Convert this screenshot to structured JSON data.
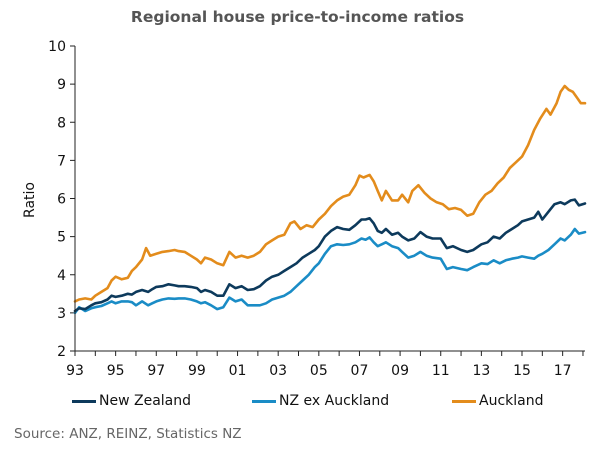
{
  "chart_data": {
    "type": "line",
    "title": "Regional house price-to-income ratios",
    "ylabel": "Ratio",
    "xlabel": "",
    "x_range": [
      1993,
      2018.1
    ],
    "ylim": [
      2,
      10
    ],
    "yticks": [
      2,
      3,
      4,
      5,
      6,
      7,
      8,
      9,
      10
    ],
    "xticks": [
      {
        "value": 1993,
        "label": "93"
      },
      {
        "value": 1995,
        "label": "95"
      },
      {
        "value": 1997,
        "label": "97"
      },
      {
        "value": 1999,
        "label": "99"
      },
      {
        "value": 2001,
        "label": "01"
      },
      {
        "value": 2003,
        "label": "03"
      },
      {
        "value": 2005,
        "label": "05"
      },
      {
        "value": 2007,
        "label": "07"
      },
      {
        "value": 2009,
        "label": "09"
      },
      {
        "value": 2011,
        "label": "11"
      },
      {
        "value": 2013,
        "label": "13"
      },
      {
        "value": 2015,
        "label": "15"
      },
      {
        "value": 2017,
        "label": "17"
      }
    ],
    "grid": false,
    "legend_position": "bottom",
    "series": [
      {
        "name": "New Zealand",
        "color": "#0d3a5c",
        "points": [
          [
            1993.0,
            3.05
          ],
          [
            1993.2,
            3.12
          ],
          [
            1993.5,
            3.1
          ],
          [
            1993.8,
            3.2
          ],
          [
            1994.0,
            3.25
          ],
          [
            1994.3,
            3.28
          ],
          [
            1994.6,
            3.35
          ],
          [
            1994.8,
            3.45
          ],
          [
            1995.0,
            3.42
          ],
          [
            1995.3,
            3.45
          ],
          [
            1995.6,
            3.5
          ],
          [
            1995.8,
            3.48
          ],
          [
            1996.0,
            3.55
          ],
          [
            1996.3,
            3.6
          ],
          [
            1996.6,
            3.55
          ],
          [
            1996.8,
            3.62
          ],
          [
            1997.0,
            3.68
          ],
          [
            1997.3,
            3.7
          ],
          [
            1997.6,
            3.75
          ],
          [
            1997.9,
            3.72
          ],
          [
            1998.1,
            3.7
          ],
          [
            1998.4,
            3.7
          ],
          [
            1998.7,
            3.68
          ],
          [
            1999.0,
            3.65
          ],
          [
            1999.2,
            3.55
          ],
          [
            1999.4,
            3.6
          ],
          [
            1999.7,
            3.55
          ],
          [
            2000.0,
            3.45
          ],
          [
            2000.3,
            3.45
          ],
          [
            2000.6,
            3.75
          ],
          [
            2000.9,
            3.65
          ],
          [
            2001.2,
            3.7
          ],
          [
            2001.5,
            3.6
          ],
          [
            2001.8,
            3.62
          ],
          [
            2002.1,
            3.7
          ],
          [
            2002.4,
            3.85
          ],
          [
            2002.7,
            3.95
          ],
          [
            2003.0,
            4.0
          ],
          [
            2003.3,
            4.1
          ],
          [
            2003.6,
            4.2
          ],
          [
            2003.9,
            4.3
          ],
          [
            2004.2,
            4.45
          ],
          [
            2004.5,
            4.55
          ],
          [
            2004.8,
            4.65
          ],
          [
            2005.0,
            4.75
          ],
          [
            2005.3,
            5.0
          ],
          [
            2005.6,
            5.15
          ],
          [
            2005.9,
            5.25
          ],
          [
            2006.2,
            5.2
          ],
          [
            2006.5,
            5.18
          ],
          [
            2006.8,
            5.3
          ],
          [
            2007.1,
            5.45
          ],
          [
            2007.3,
            5.45
          ],
          [
            2007.5,
            5.48
          ],
          [
            2007.7,
            5.35
          ],
          [
            2007.9,
            5.15
          ],
          [
            2008.1,
            5.1
          ],
          [
            2008.3,
            5.2
          ],
          [
            2008.6,
            5.05
          ],
          [
            2008.9,
            5.1
          ],
          [
            2009.1,
            5.0
          ],
          [
            2009.4,
            4.9
          ],
          [
            2009.7,
            4.95
          ],
          [
            2010.0,
            5.12
          ],
          [
            2010.3,
            5.0
          ],
          [
            2010.6,
            4.95
          ],
          [
            2011.0,
            4.95
          ],
          [
            2011.3,
            4.7
          ],
          [
            2011.6,
            4.75
          ],
          [
            2012.0,
            4.65
          ],
          [
            2012.3,
            4.6
          ],
          [
            2012.6,
            4.65
          ],
          [
            2013.0,
            4.8
          ],
          [
            2013.3,
            4.85
          ],
          [
            2013.6,
            5.0
          ],
          [
            2013.9,
            4.95
          ],
          [
            2014.2,
            5.1
          ],
          [
            2014.5,
            5.2
          ],
          [
            2014.8,
            5.3
          ],
          [
            2015.0,
            5.4
          ],
          [
            2015.3,
            5.45
          ],
          [
            2015.6,
            5.5
          ],
          [
            2015.8,
            5.65
          ],
          [
            2016.0,
            5.45
          ],
          [
            2016.3,
            5.65
          ],
          [
            2016.6,
            5.85
          ],
          [
            2016.9,
            5.9
          ],
          [
            2017.1,
            5.85
          ],
          [
            2017.4,
            5.95
          ],
          [
            2017.6,
            5.97
          ],
          [
            2017.8,
            5.82
          ],
          [
            2018.1,
            5.87
          ]
        ]
      },
      {
        "name": "NZ ex Auckland",
        "color": "#1a8cc6",
        "points": [
          [
            1993.0,
            3.0
          ],
          [
            1993.2,
            3.15
          ],
          [
            1993.5,
            3.05
          ],
          [
            1993.8,
            3.12
          ],
          [
            1994.0,
            3.15
          ],
          [
            1994.3,
            3.18
          ],
          [
            1994.6,
            3.25
          ],
          [
            1994.8,
            3.3
          ],
          [
            1995.0,
            3.25
          ],
          [
            1995.3,
            3.3
          ],
          [
            1995.6,
            3.3
          ],
          [
            1995.8,
            3.28
          ],
          [
            1996.0,
            3.2
          ],
          [
            1996.3,
            3.3
          ],
          [
            1996.6,
            3.2
          ],
          [
            1996.8,
            3.25
          ],
          [
            1997.0,
            3.3
          ],
          [
            1997.3,
            3.35
          ],
          [
            1997.6,
            3.38
          ],
          [
            1997.9,
            3.37
          ],
          [
            1998.1,
            3.38
          ],
          [
            1998.4,
            3.38
          ],
          [
            1998.7,
            3.35
          ],
          [
            1999.0,
            3.3
          ],
          [
            1999.2,
            3.25
          ],
          [
            1999.4,
            3.28
          ],
          [
            1999.7,
            3.2
          ],
          [
            2000.0,
            3.1
          ],
          [
            2000.3,
            3.15
          ],
          [
            2000.6,
            3.4
          ],
          [
            2000.9,
            3.3
          ],
          [
            2001.2,
            3.35
          ],
          [
            2001.5,
            3.2
          ],
          [
            2001.8,
            3.2
          ],
          [
            2002.1,
            3.2
          ],
          [
            2002.4,
            3.25
          ],
          [
            2002.7,
            3.35
          ],
          [
            2003.0,
            3.4
          ],
          [
            2003.3,
            3.45
          ],
          [
            2003.6,
            3.55
          ],
          [
            2003.9,
            3.7
          ],
          [
            2004.2,
            3.85
          ],
          [
            2004.5,
            4.0
          ],
          [
            2004.8,
            4.2
          ],
          [
            2005.0,
            4.3
          ],
          [
            2005.3,
            4.55
          ],
          [
            2005.6,
            4.75
          ],
          [
            2005.9,
            4.8
          ],
          [
            2006.2,
            4.78
          ],
          [
            2006.5,
            4.8
          ],
          [
            2006.8,
            4.85
          ],
          [
            2007.1,
            4.95
          ],
          [
            2007.3,
            4.92
          ],
          [
            2007.5,
            4.98
          ],
          [
            2007.7,
            4.85
          ],
          [
            2007.9,
            4.75
          ],
          [
            2008.1,
            4.8
          ],
          [
            2008.3,
            4.85
          ],
          [
            2008.6,
            4.75
          ],
          [
            2008.9,
            4.7
          ],
          [
            2009.1,
            4.6
          ],
          [
            2009.4,
            4.45
          ],
          [
            2009.7,
            4.5
          ],
          [
            2010.0,
            4.6
          ],
          [
            2010.3,
            4.5
          ],
          [
            2010.6,
            4.45
          ],
          [
            2011.0,
            4.42
          ],
          [
            2011.3,
            4.15
          ],
          [
            2011.6,
            4.2
          ],
          [
            2012.0,
            4.15
          ],
          [
            2012.3,
            4.12
          ],
          [
            2012.6,
            4.2
          ],
          [
            2013.0,
            4.3
          ],
          [
            2013.3,
            4.28
          ],
          [
            2013.6,
            4.38
          ],
          [
            2013.9,
            4.3
          ],
          [
            2014.2,
            4.38
          ],
          [
            2014.5,
            4.42
          ],
          [
            2014.8,
            4.45
          ],
          [
            2015.0,
            4.48
          ],
          [
            2015.3,
            4.45
          ],
          [
            2015.6,
            4.42
          ],
          [
            2015.8,
            4.5
          ],
          [
            2016.0,
            4.55
          ],
          [
            2016.3,
            4.65
          ],
          [
            2016.6,
            4.8
          ],
          [
            2016.9,
            4.95
          ],
          [
            2017.1,
            4.9
          ],
          [
            2017.4,
            5.05
          ],
          [
            2017.6,
            5.2
          ],
          [
            2017.8,
            5.08
          ],
          [
            2018.1,
            5.12
          ]
        ]
      },
      {
        "name": "Auckland",
        "color": "#e38c1c",
        "points": [
          [
            1993.0,
            3.3
          ],
          [
            1993.2,
            3.35
          ],
          [
            1993.5,
            3.38
          ],
          [
            1993.8,
            3.35
          ],
          [
            1994.0,
            3.45
          ],
          [
            1994.3,
            3.55
          ],
          [
            1994.6,
            3.65
          ],
          [
            1994.8,
            3.85
          ],
          [
            1995.0,
            3.95
          ],
          [
            1995.3,
            3.88
          ],
          [
            1995.6,
            3.92
          ],
          [
            1995.8,
            4.1
          ],
          [
            1996.0,
            4.2
          ],
          [
            1996.3,
            4.4
          ],
          [
            1996.5,
            4.7
          ],
          [
            1996.7,
            4.5
          ],
          [
            1997.0,
            4.55
          ],
          [
            1997.3,
            4.6
          ],
          [
            1997.6,
            4.62
          ],
          [
            1997.9,
            4.65
          ],
          [
            1998.1,
            4.62
          ],
          [
            1998.4,
            4.6
          ],
          [
            1998.7,
            4.5
          ],
          [
            1999.0,
            4.4
          ],
          [
            1999.2,
            4.3
          ],
          [
            1999.4,
            4.45
          ],
          [
            1999.7,
            4.4
          ],
          [
            2000.0,
            4.3
          ],
          [
            2000.3,
            4.25
          ],
          [
            2000.6,
            4.6
          ],
          [
            2000.9,
            4.45
          ],
          [
            2001.2,
            4.5
          ],
          [
            2001.5,
            4.45
          ],
          [
            2001.8,
            4.5
          ],
          [
            2002.1,
            4.6
          ],
          [
            2002.4,
            4.8
          ],
          [
            2002.7,
            4.9
          ],
          [
            2003.0,
            5.0
          ],
          [
            2003.3,
            5.05
          ],
          [
            2003.6,
            5.35
          ],
          [
            2003.8,
            5.4
          ],
          [
            2004.1,
            5.2
          ],
          [
            2004.4,
            5.3
          ],
          [
            2004.7,
            5.25
          ],
          [
            2005.0,
            5.45
          ],
          [
            2005.3,
            5.6
          ],
          [
            2005.6,
            5.8
          ],
          [
            2005.9,
            5.95
          ],
          [
            2006.2,
            6.05
          ],
          [
            2006.5,
            6.1
          ],
          [
            2006.8,
            6.35
          ],
          [
            2007.0,
            6.6
          ],
          [
            2007.2,
            6.55
          ],
          [
            2007.5,
            6.62
          ],
          [
            2007.7,
            6.45
          ],
          [
            2007.9,
            6.2
          ],
          [
            2008.1,
            5.95
          ],
          [
            2008.3,
            6.2
          ],
          [
            2008.6,
            5.95
          ],
          [
            2008.9,
            5.95
          ],
          [
            2009.1,
            6.1
          ],
          [
            2009.4,
            5.9
          ],
          [
            2009.6,
            6.2
          ],
          [
            2009.9,
            6.35
          ],
          [
            2010.2,
            6.15
          ],
          [
            2010.5,
            6.0
          ],
          [
            2010.8,
            5.9
          ],
          [
            2011.1,
            5.85
          ],
          [
            2011.4,
            5.72
          ],
          [
            2011.7,
            5.75
          ],
          [
            2012.0,
            5.7
          ],
          [
            2012.3,
            5.55
          ],
          [
            2012.6,
            5.6
          ],
          [
            2012.9,
            5.9
          ],
          [
            2013.2,
            6.1
          ],
          [
            2013.5,
            6.2
          ],
          [
            2013.8,
            6.4
          ],
          [
            2014.1,
            6.55
          ],
          [
            2014.4,
            6.8
          ],
          [
            2014.7,
            6.95
          ],
          [
            2015.0,
            7.1
          ],
          [
            2015.3,
            7.4
          ],
          [
            2015.6,
            7.8
          ],
          [
            2015.9,
            8.1
          ],
          [
            2016.2,
            8.35
          ],
          [
            2016.4,
            8.2
          ],
          [
            2016.7,
            8.5
          ],
          [
            2016.9,
            8.8
          ],
          [
            2017.1,
            8.95
          ],
          [
            2017.3,
            8.85
          ],
          [
            2017.5,
            8.8
          ],
          [
            2017.7,
            8.65
          ],
          [
            2017.9,
            8.5
          ],
          [
            2018.1,
            8.5
          ]
        ]
      }
    ]
  },
  "legend": [
    {
      "label": "New Zealand",
      "color": "#0d3a5c"
    },
    {
      "label": "NZ ex Auckland",
      "color": "#1a8cc6"
    },
    {
      "label": "Auckland",
      "color": "#e38c1c"
    }
  ],
  "source": "Source: ANZ, REINZ, Statistics NZ"
}
